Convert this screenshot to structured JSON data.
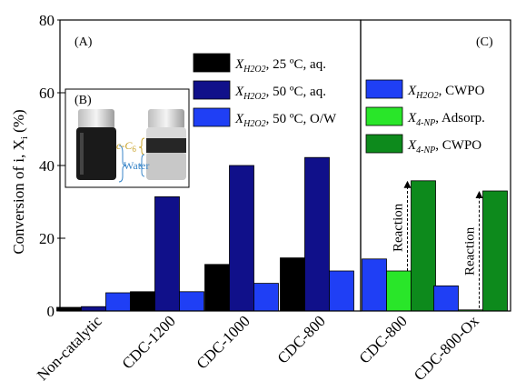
{
  "chart_data": {
    "type": "bar",
    "ylabel": "Conversion of i, X",
    "ylabel_sub": "i",
    "ylabel_unit": " (%)",
    "ylim": [
      0,
      80
    ],
    "yticks": [
      "0",
      "20",
      "40",
      "60",
      "80"
    ],
    "panels": [
      {
        "label": "(A)",
        "categories": [
          "Non-catalytic",
          "CDC-1200",
          "CDC-1000",
          "CDC-800"
        ],
        "series": [
          {
            "key": "h2o2_25aq",
            "legend_main": "X",
            "legend_sub": "H2O2",
            "legend_rest": ", 25 ºC, aq.",
            "color": "#000000",
            "values": [
              1.0,
              5.3,
              12.8,
              14.6
            ]
          },
          {
            "key": "h2o2_50aq",
            "legend_main": "X",
            "legend_sub": "H2O2",
            "legend_rest": ", 50 ºC, aq.",
            "color": "#10108a",
            "values": [
              1.2,
              31.4,
              40.0,
              42.2
            ]
          },
          {
            "key": "h2o2_50ow",
            "legend_main": "X",
            "legend_sub": "H2O2",
            "legend_rest": ", 50 ºC, O/W",
            "color": "#1f3ff5",
            "values": [
              5.0,
              5.3,
              7.6,
              11.0
            ]
          }
        ]
      },
      {
        "label": "(C)",
        "categories": [
          "CDC-800",
          "CDC-800-Ox"
        ],
        "series": [
          {
            "key": "h2o2_cwpo",
            "legend_main": "X",
            "legend_sub": "H2O2",
            "legend_rest": ", CWPO",
            "color": "#1f3ff5",
            "values": [
              14.3,
              6.9
            ]
          },
          {
            "key": "np_adsorp",
            "legend_main": "X",
            "legend_sub": "4-NP",
            "legend_rest": ", Adsorp.",
            "color": "#29e629",
            "values": [
              11.0,
              0.3
            ]
          },
          {
            "key": "np_cwpo",
            "legend_main": "X",
            "legend_sub": "4-NP",
            "legend_rest": ", CWPO",
            "color": "#0d8a1c",
            "values": [
              35.8,
              33.0
            ]
          }
        ],
        "annotations": [
          "Reaction",
          "Reaction"
        ]
      }
    ],
    "inset": {
      "label": "(B)",
      "labels": [
        "c-C",
        "6",
        "Water"
      ]
    }
  }
}
